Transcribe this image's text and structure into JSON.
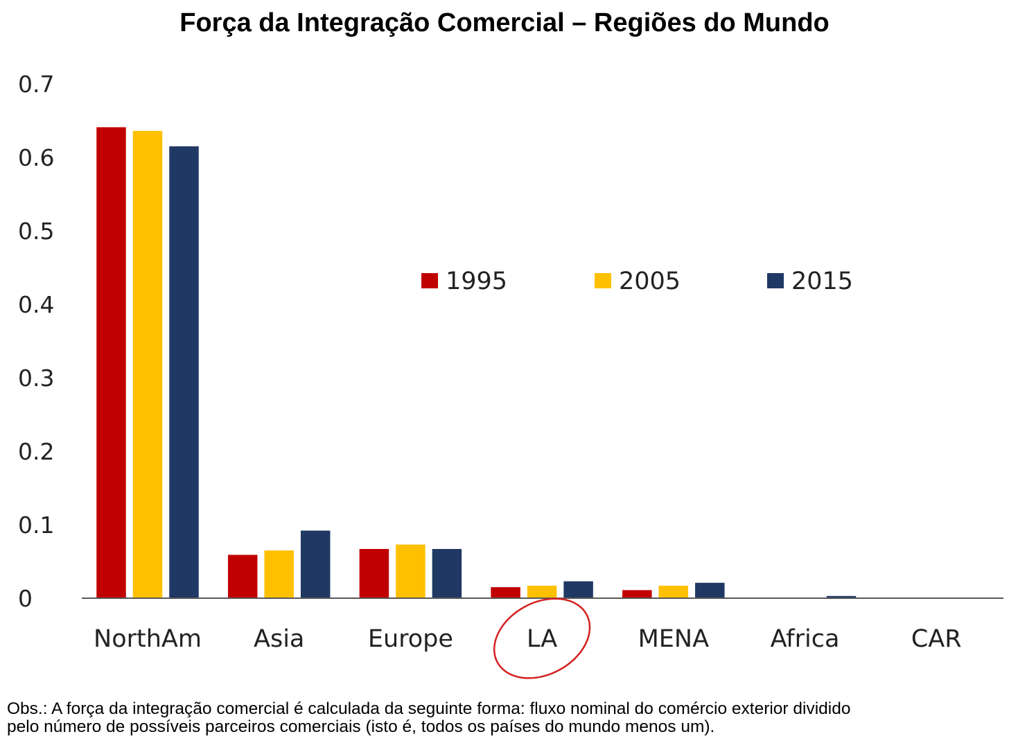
{
  "title": "Força da Integração Comercial – Regiões do Mundo",
  "note": {
    "line1": "Obs.: A força da integração comercial é calculada da seguinte forma: fluxo nominal do comércio exterior dividido",
    "line2": "pelo número de possíveis parceiros comerciais (isto é, todos os países do mundo menos um)."
  },
  "chart_data": {
    "type": "bar",
    "title": "Força da Integração Comercial – Regiões do Mundo",
    "xlabel": "",
    "ylabel": "",
    "ylim": [
      0,
      0.7
    ],
    "yticks": [
      "0",
      "0.1",
      "0.2",
      "0.3",
      "0.4",
      "0.5",
      "0.6",
      "0.7"
    ],
    "grid": false,
    "legend_position": "center",
    "categories": [
      "NorthAm",
      "Asia",
      "Europe",
      "LA",
      "MENA",
      "Africa",
      "CAR"
    ],
    "series": [
      {
        "name": "1995",
        "color": "#c00000",
        "values": [
          0.641,
          0.059,
          0.067,
          0.015,
          0.011,
          0.0,
          0.0
        ]
      },
      {
        "name": "2005",
        "color": "#ffc000",
        "values": [
          0.636,
          0.065,
          0.073,
          0.017,
          0.017,
          0.001,
          0.0
        ]
      },
      {
        "name": "2015",
        "color": "#203864",
        "values": [
          0.615,
          0.092,
          0.067,
          0.023,
          0.021,
          0.003,
          0.0
        ]
      }
    ],
    "annotations": [
      {
        "type": "ellipse",
        "target": "LA",
        "color": "#d42020"
      }
    ]
  }
}
